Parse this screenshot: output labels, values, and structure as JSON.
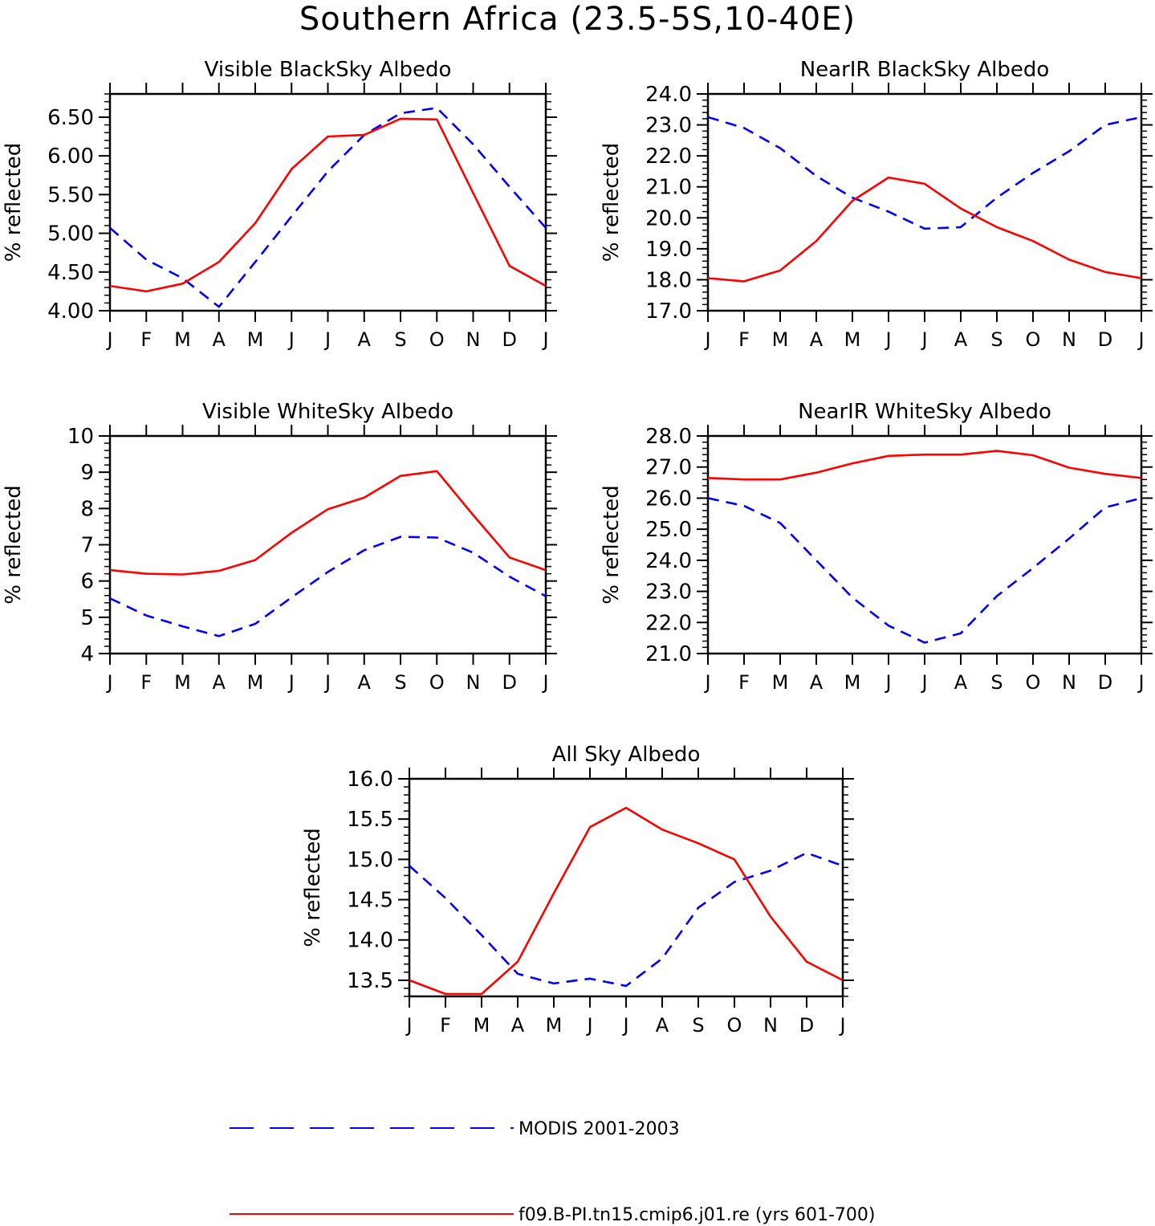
{
  "figure": {
    "title": "Southern Africa (23.5-5S,10-40E)"
  },
  "legend": {
    "modis": {
      "label": "MODIS 2001-2003",
      "color": "#0000ff",
      "style": "dashed"
    },
    "model": {
      "label": "f09.B-PI.tn15.cmip6.j01.re (yrs 601-700)",
      "color": "#ff0000",
      "style": "solid"
    }
  },
  "chart_data": [
    {
      "type": "line",
      "title": "Visible BlackSky Albedo",
      "ylabel": "% reflected",
      "xlabel": "",
      "categories": [
        "J",
        "F",
        "M",
        "A",
        "M",
        "J",
        "J",
        "A",
        "S",
        "O",
        "N",
        "D",
        "J"
      ],
      "ylim": [
        4.0,
        6.8
      ],
      "yticks": [
        4.0,
        4.5,
        5.0,
        5.5,
        6.0,
        6.5
      ],
      "ytick_labels": [
        "4.00",
        "4.50",
        "5.00",
        "5.50",
        "6.00",
        "6.50"
      ],
      "series": [
        {
          "name": "MODIS 2001-2003",
          "values": [
            5.07,
            4.66,
            4.42,
            4.05,
            4.63,
            5.22,
            5.8,
            6.27,
            6.55,
            6.62,
            6.15,
            5.6,
            5.07
          ]
        },
        {
          "name": "f09.B-PI.tn15.cmip6.j01.re (yrs 601-700)",
          "values": [
            4.32,
            4.25,
            4.35,
            4.63,
            5.13,
            5.83,
            6.25,
            6.27,
            6.48,
            6.47,
            5.52,
            4.58,
            4.32
          ]
        }
      ]
    },
    {
      "type": "line",
      "title": "NearIR BlackSky Albedo",
      "ylabel": "% reflected",
      "xlabel": "",
      "categories": [
        "J",
        "F",
        "M",
        "A",
        "M",
        "J",
        "J",
        "A",
        "S",
        "O",
        "N",
        "D",
        "J"
      ],
      "ylim": [
        17.0,
        24.0
      ],
      "yticks": [
        17,
        18,
        19,
        20,
        21,
        22,
        23,
        24
      ],
      "ytick_labels": [
        "17.0",
        "18.0",
        "19.0",
        "20.0",
        "21.0",
        "22.0",
        "23.0",
        "24.0"
      ],
      "series": [
        {
          "name": "MODIS 2001-2003",
          "values": [
            23.25,
            22.9,
            22.25,
            21.35,
            20.65,
            20.2,
            19.65,
            19.7,
            20.65,
            21.45,
            22.15,
            23.0,
            23.25
          ]
        },
        {
          "name": "f09.B-PI.tn15.cmip6.j01.re (yrs 601-700)",
          "values": [
            18.05,
            17.95,
            18.3,
            19.25,
            20.55,
            21.3,
            21.1,
            20.3,
            19.7,
            19.25,
            18.65,
            18.25,
            18.05
          ]
        }
      ]
    },
    {
      "type": "line",
      "title": "Visible WhiteSky Albedo",
      "ylabel": "% reflected",
      "xlabel": "",
      "categories": [
        "J",
        "F",
        "M",
        "A",
        "M",
        "J",
        "J",
        "A",
        "S",
        "O",
        "N",
        "D",
        "J"
      ],
      "ylim": [
        4,
        10
      ],
      "yticks": [
        4,
        5,
        6,
        7,
        8,
        9,
        10
      ],
      "ytick_labels": [
        "4",
        "5",
        "6",
        "7",
        "8",
        "9",
        "10"
      ],
      "series": [
        {
          "name": "MODIS 2001-2003",
          "values": [
            5.52,
            5.05,
            4.75,
            4.48,
            4.82,
            5.55,
            6.25,
            6.85,
            7.22,
            7.2,
            6.78,
            6.12,
            5.58
          ]
        },
        {
          "name": "f09.B-PI.tn15.cmip6.j01.re (yrs 601-700)",
          "values": [
            6.3,
            6.2,
            6.18,
            6.28,
            6.58,
            7.33,
            7.98,
            8.3,
            8.9,
            9.03,
            7.82,
            6.65,
            6.3
          ]
        }
      ]
    },
    {
      "type": "line",
      "title": "NearIR WhiteSky Albedo",
      "ylabel": "% reflected",
      "xlabel": "",
      "categories": [
        "J",
        "F",
        "M",
        "A",
        "M",
        "J",
        "J",
        "A",
        "S",
        "O",
        "N",
        "D",
        "J"
      ],
      "ylim": [
        21.0,
        28.0
      ],
      "yticks": [
        21,
        22,
        23,
        24,
        25,
        26,
        27,
        28
      ],
      "ytick_labels": [
        "21.0",
        "22.0",
        "23.0",
        "24.0",
        "25.0",
        "26.0",
        "27.0",
        "28.0"
      ],
      "series": [
        {
          "name": "MODIS 2001-2003",
          "values": [
            26.0,
            25.75,
            25.2,
            24.0,
            22.8,
            21.9,
            21.35,
            21.65,
            22.85,
            23.75,
            24.7,
            25.7,
            26.0
          ]
        },
        {
          "name": "f09.B-PI.tn15.cmip6.j01.re (yrs 601-700)",
          "values": [
            26.65,
            26.6,
            26.6,
            26.82,
            27.12,
            27.36,
            27.4,
            27.4,
            27.52,
            27.38,
            26.98,
            26.78,
            26.65
          ]
        }
      ]
    },
    {
      "type": "line",
      "title": "All Sky Albedo",
      "ylabel": "% reflected",
      "xlabel": "",
      "categories": [
        "J",
        "F",
        "M",
        "A",
        "M",
        "J",
        "J",
        "A",
        "S",
        "O",
        "N",
        "D",
        "J"
      ],
      "ylim": [
        13.3,
        16.0
      ],
      "yticks": [
        13.5,
        14.0,
        14.5,
        15.0,
        15.5,
        16.0
      ],
      "ytick_labels": [
        "13.5",
        "14.0",
        "14.5",
        "15.0",
        "15.5",
        "16.0"
      ],
      "series": [
        {
          "name": "MODIS 2001-2003",
          "values": [
            14.92,
            14.52,
            14.06,
            13.58,
            13.46,
            13.52,
            13.43,
            13.77,
            14.4,
            14.72,
            14.86,
            15.08,
            14.92
          ]
        },
        {
          "name": "f09.B-PI.tn15.cmip6.j01.re (yrs 601-700)",
          "values": [
            13.5,
            13.33,
            13.33,
            13.73,
            14.58,
            15.4,
            15.64,
            15.37,
            15.2,
            15.0,
            14.29,
            13.73,
            13.5
          ]
        }
      ]
    }
  ]
}
